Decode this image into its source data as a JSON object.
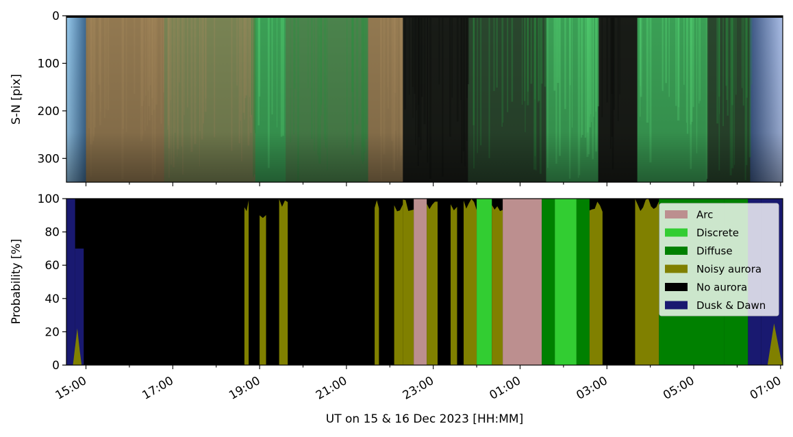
{
  "figure": {
    "xlabel": "UT on 15 & 16 Dec 2023 [HH:MM]"
  },
  "chart_data": [
    {
      "type": "heatmap",
      "ylabel": "S-N [pix]",
      "ylim": [
        350,
        0
      ],
      "yticks": [
        "0",
        "100",
        "200",
        "300"
      ],
      "ytick_values": [
        0,
        100,
        200,
        300
      ],
      "x_range_hours": [
        14.55,
        31.05
      ],
      "colors": {
        "twilight_blue": "#8fc4f2",
        "brown_aurora": "#9a7f55",
        "green_aurora": "#3ea85a",
        "dark": "#1a1d18"
      },
      "bands": [
        {
          "start": 14.55,
          "end": 15.0,
          "kind": "twilight"
        },
        {
          "start": 15.0,
          "end": 16.8,
          "kind": "brown"
        },
        {
          "start": 16.8,
          "end": 18.9,
          "kind": "brown-green"
        },
        {
          "start": 18.9,
          "end": 19.6,
          "kind": "green"
        },
        {
          "start": 19.6,
          "end": 21.5,
          "kind": "green-dim"
        },
        {
          "start": 21.5,
          "end": 22.3,
          "kind": "brown"
        },
        {
          "start": 22.3,
          "end": 23.8,
          "kind": "dark"
        },
        {
          "start": 23.8,
          "end": 25.6,
          "kind": "dark-green"
        },
        {
          "start": 25.6,
          "end": 26.8,
          "kind": "green"
        },
        {
          "start": 26.8,
          "end": 27.7,
          "kind": "dark"
        },
        {
          "start": 27.7,
          "end": 29.3,
          "kind": "green"
        },
        {
          "start": 29.3,
          "end": 30.3,
          "kind": "dark-green"
        },
        {
          "start": 30.3,
          "end": 31.05,
          "kind": "twilight"
        }
      ]
    },
    {
      "type": "area",
      "ylabel": "Probability [%]",
      "ylim": [
        0,
        100
      ],
      "yticks": [
        "0",
        "20",
        "40",
        "60",
        "80",
        "100"
      ],
      "ytick_values": [
        0,
        20,
        40,
        60,
        80,
        100
      ],
      "x_range_hours": [
        14.55,
        31.05
      ],
      "xtick_hours": [
        15,
        17,
        19,
        21,
        23,
        25,
        27,
        29,
        31
      ],
      "xticks": [
        "15:00",
        "17:00",
        "19:00",
        "21:00",
        "23:00",
        "01:00",
        "03:00",
        "05:00",
        "07:00"
      ],
      "legend_position": "upper right",
      "series": [
        {
          "name": "Arc",
          "color": "#bc8f8f"
        },
        {
          "name": "Discrete",
          "color": "#32cd32"
        },
        {
          "name": "Diffuse",
          "color": "#008000"
        },
        {
          "name": "Noisy aurora",
          "color": "#808000"
        },
        {
          "name": "No aurora",
          "color": "#000000"
        },
        {
          "name": "Dusk & Dawn",
          "color": "#191970"
        }
      ],
      "segments": [
        {
          "start": 14.55,
          "end": 14.75,
          "class": "Dusk & Dawn",
          "p": 100
        },
        {
          "start": 14.75,
          "end": 14.95,
          "class": "Dusk & Dawn",
          "p": 70
        },
        {
          "start": 14.95,
          "end": 18.65,
          "class": "No aurora",
          "p": 100
        },
        {
          "start": 18.65,
          "end": 18.75,
          "class": "Noisy aurora",
          "p": 100
        },
        {
          "start": 18.75,
          "end": 19.0,
          "class": "No aurora",
          "p": 100
        },
        {
          "start": 19.0,
          "end": 19.15,
          "class": "Noisy aurora",
          "p": 95
        },
        {
          "start": 19.15,
          "end": 19.45,
          "class": "No aurora",
          "p": 100
        },
        {
          "start": 19.45,
          "end": 19.65,
          "class": "Noisy aurora",
          "p": 100
        },
        {
          "start": 19.65,
          "end": 21.65,
          "class": "No aurora",
          "p": 100
        },
        {
          "start": 21.65,
          "end": 21.75,
          "class": "Noisy aurora",
          "p": 100
        },
        {
          "start": 21.75,
          "end": 22.1,
          "class": "No aurora",
          "p": 100
        },
        {
          "start": 22.1,
          "end": 22.3,
          "class": "Noisy aurora",
          "p": 100
        },
        {
          "start": 22.3,
          "end": 22.55,
          "class": "Noisy aurora",
          "p": 100
        },
        {
          "start": 22.55,
          "end": 22.85,
          "class": "Arc",
          "p": 100
        },
        {
          "start": 22.85,
          "end": 23.1,
          "class": "Noisy aurora",
          "p": 100
        },
        {
          "start": 23.1,
          "end": 23.4,
          "class": "No aurora",
          "p": 100
        },
        {
          "start": 23.4,
          "end": 23.55,
          "class": "Noisy aurora",
          "p": 100
        },
        {
          "start": 23.55,
          "end": 23.7,
          "class": "No aurora",
          "p": 100
        },
        {
          "start": 23.7,
          "end": 24.0,
          "class": "Noisy aurora",
          "p": 100
        },
        {
          "start": 24.0,
          "end": 24.35,
          "class": "Discrete",
          "p": 100
        },
        {
          "start": 24.35,
          "end": 24.6,
          "class": "Noisy aurora",
          "p": 100
        },
        {
          "start": 24.6,
          "end": 25.5,
          "class": "Arc",
          "p": 100
        },
        {
          "start": 25.5,
          "end": 25.8,
          "class": "Diffuse",
          "p": 100
        },
        {
          "start": 25.8,
          "end": 26.3,
          "class": "Discrete",
          "p": 100
        },
        {
          "start": 26.3,
          "end": 26.6,
          "class": "Diffuse",
          "p": 100
        },
        {
          "start": 26.6,
          "end": 26.9,
          "class": "Noisy aurora",
          "p": 100
        },
        {
          "start": 26.9,
          "end": 27.65,
          "class": "No aurora",
          "p": 100
        },
        {
          "start": 27.65,
          "end": 28.2,
          "class": "Noisy aurora",
          "p": 100
        },
        {
          "start": 28.2,
          "end": 29.7,
          "class": "Diffuse",
          "p": 100
        },
        {
          "start": 29.7,
          "end": 30.25,
          "class": "Diffuse",
          "p": 100
        },
        {
          "start": 30.25,
          "end": 30.55,
          "class": "Dusk & Dawn",
          "p": 100
        },
        {
          "start": 30.55,
          "end": 31.05,
          "class": "Dusk & Dawn",
          "p": 100
        }
      ]
    }
  ]
}
